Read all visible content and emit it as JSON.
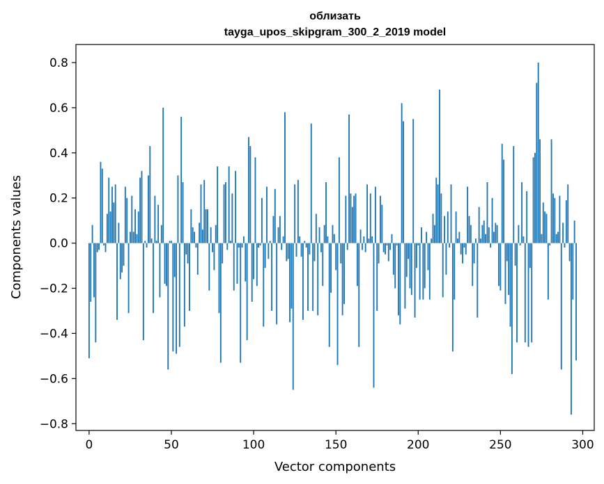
{
  "chart_data": {
    "type": "bar",
    "title_line1": "облизать",
    "title_line2": "tayga_upos_skipgram_300_2_2019 model",
    "xlabel": "Vector components",
    "ylabel": "Components values",
    "xlim": [
      -8,
      307
    ],
    "ylim": [
      -0.83,
      0.88
    ],
    "x_ticks": [
      0,
      50,
      100,
      150,
      200,
      250,
      300
    ],
    "x_tick_labels": [
      "0",
      "50",
      "100",
      "150",
      "200",
      "250",
      "300"
    ],
    "y_ticks": [
      -0.8,
      -0.6,
      -0.4,
      -0.2,
      0.0,
      0.2,
      0.4,
      0.6,
      0.8
    ],
    "y_tick_labels": [
      "−0.8",
      "−0.6",
      "−0.4",
      "−0.2",
      "0.0",
      "0.2",
      "0.4",
      "0.6",
      "0.8"
    ],
    "bar_color": "#1f77b4",
    "values": [
      -0.51,
      -0.26,
      0.08,
      -0.24,
      -0.44,
      -0.04,
      -0.03,
      0.36,
      0.33,
      -0.01,
      -0.04,
      0.13,
      0.29,
      0.14,
      0.25,
      0.18,
      0.26,
      -0.34,
      0.09,
      -0.16,
      -0.13,
      -0.1,
      0.25,
      0.2,
      -0.31,
      0.05,
      0.21,
      0.05,
      0.15,
      0.04,
      0.14,
      0.29,
      0.32,
      -0.43,
      0.01,
      -0.02,
      0.3,
      0.43,
      0.02,
      -0.31,
      0.21,
      0.01,
      0.17,
      -0.24,
      0.08,
      0.6,
      -0.18,
      -0.19,
      -0.56,
      0.01,
      0.01,
      -0.48,
      -0.15,
      -0.49,
      0.3,
      -0.46,
      0.56,
      0.27,
      -0.37,
      -0.05,
      -0.09,
      -0.3,
      0.15,
      0.07,
      0.05,
      -0.02,
      -0.14,
      0.09,
      0.26,
      0.06,
      0.28,
      0.15,
      0.15,
      -0.21,
      0.07,
      -0.04,
      -0.12,
      0.08,
      0.34,
      -0.31,
      -0.53,
      -0.09,
      0.26,
      0.27,
      -0.03,
      0.34,
      0.01,
      0.22,
      -0.21,
      0.32,
      -0.18,
      -0.02,
      -0.53,
      -0.02,
      0.03,
      -0.17,
      -0.43,
      0.47,
      0.43,
      -0.26,
      -0.16,
      0.38,
      -0.19,
      -0.02,
      -0.01,
      0.2,
      -0.37,
      -0.11,
      0.25,
      -0.07,
      0.01,
      -0.3,
      0.12,
      0.24,
      -0.36,
      0.07,
      0.12,
      -0.03,
      0.03,
      0.58,
      -0.08,
      -0.07,
      -0.35,
      -0.29,
      -0.65,
      0.26,
      -0.06,
      0.28,
      0.03,
      -0.06,
      -0.34,
      0.01,
      -0.02,
      -0.3,
      -0.05,
      0.53,
      -0.3,
      -0.08,
      0.13,
      -0.32,
      0.07,
      -0.04,
      -0.19,
      0.08,
      0.27,
      0.03,
      -0.46,
      -0.22,
      0.08,
      0.04,
      -0.12,
      -0.54,
      0.38,
      -0.09,
      -0.32,
      -0.27,
      0.21,
      -0.03,
      0.57,
      0.22,
      0.16,
      0.21,
      0.22,
      -0.19,
      -0.46,
      0.06,
      -0.03,
      0.03,
      -0.04,
      0.26,
      0.02,
      0.22,
      0.03,
      -0.64,
      0.25,
      -0.3,
      -0.09,
      0.21,
      0.17,
      -0.04,
      -0.05,
      -0.01,
      -0.08,
      -0.03,
      0.04,
      -0.14,
      -0.2,
      -0.01,
      -0.32,
      -0.36,
      0.62,
      0.54,
      -0.29,
      -0.15,
      -0.07,
      -0.2,
      -0.23,
      0.55,
      -0.33,
      -0.11,
      -0.01,
      -0.25,
      0.07,
      -0.25,
      -0.2,
      0.05,
      -0.12,
      -0.25,
      0.02,
      0.13,
      0.08,
      0.29,
      0.26,
      0.68,
      0.22,
      -0.24,
      0.12,
      -0.14,
      0.14,
      -0.02,
      0.26,
      -0.48,
      -0.25,
      0.14,
      0.02,
      0.05,
      -0.05,
      -0.09,
      -0.02,
      -0.05,
      0.25,
      0.12,
      0.08,
      -0.19,
      -0.09,
      0.02,
      -0.33,
      0.16,
      0.02,
      0.08,
      0.1,
      0.04,
      0.27,
      0.07,
      -0.02,
      0.2,
      0.05,
      0.09,
      0.08,
      -0.19,
      -0.21,
      0.44,
      0.37,
      -0.27,
      -0.08,
      -0.23,
      -0.37,
      -0.58,
      0.43,
      -0.1,
      -0.44,
      0.08,
      -0.01,
      0.27,
      0.03,
      -0.44,
      0.23,
      -0.46,
      -0.11,
      -0.44,
      0.38,
      0.4,
      0.71,
      0.8,
      0.46,
      0.04,
      0.18,
      0.14,
      0.13,
      -0.25,
      -0.01,
      0.46,
      0.22,
      0.2,
      0.04,
      0.05,
      0.21,
      -0.56,
      0.09,
      -0.02,
      0.19,
      0.26,
      -0.08,
      -0.76,
      -0.25,
      0.1,
      -0.52
    ]
  }
}
